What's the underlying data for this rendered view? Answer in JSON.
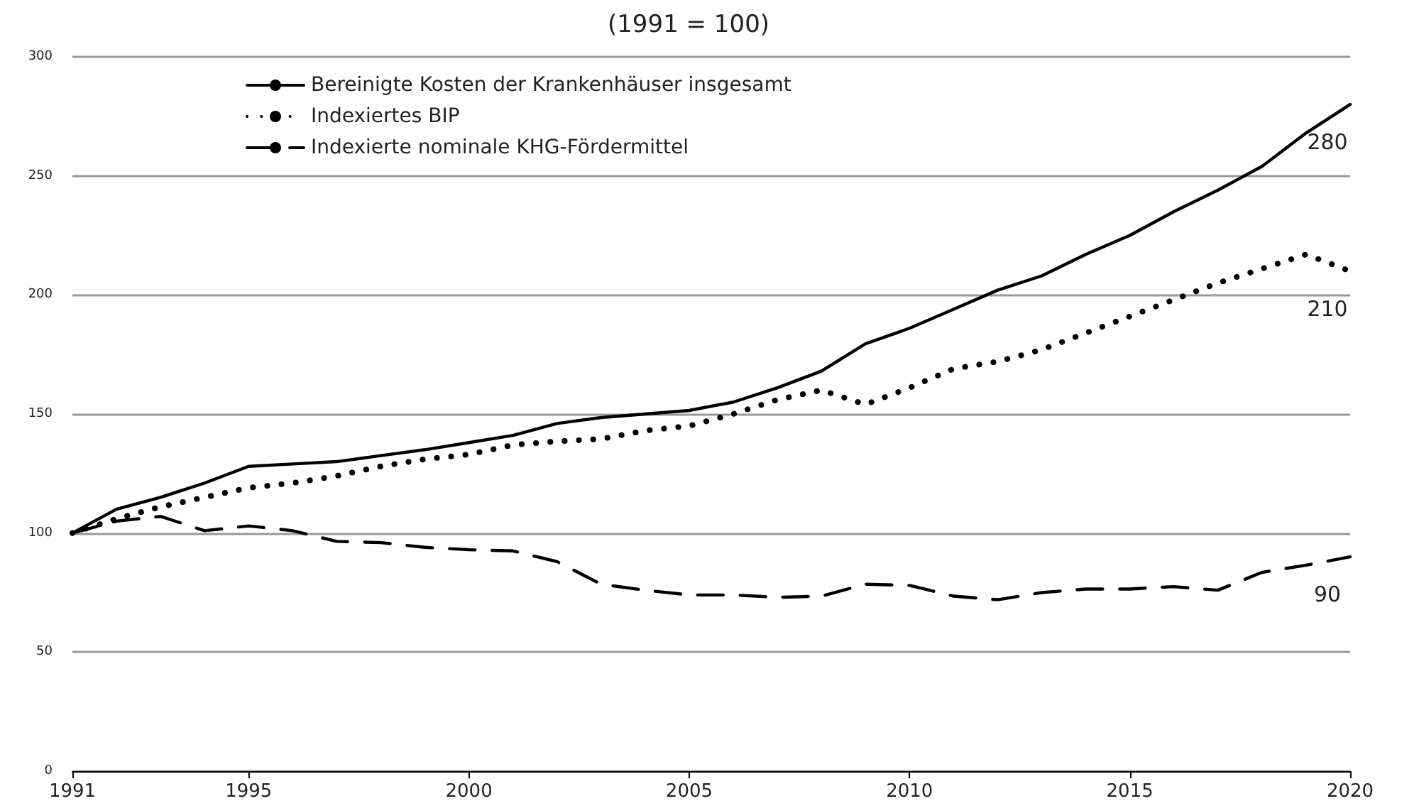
{
  "chart_data": {
    "type": "line",
    "title": "(1991 = 100)",
    "x": [
      1991,
      1992,
      1993,
      1994,
      1995,
      1996,
      1997,
      1998,
      1999,
      2000,
      2001,
      2002,
      2003,
      2004,
      2005,
      2006,
      2007,
      2008,
      2009,
      2010,
      2011,
      2012,
      2013,
      2014,
      2015,
      2016,
      2017,
      2018,
      2019,
      2020
    ],
    "series": [
      {
        "name": "Bereinigte Kosten der Krankenhäuser insgesamt",
        "color": "#000000",
        "line_style": "solid",
        "values": [
          100,
          110,
          115,
          121,
          128,
          129,
          130,
          132.5,
          135,
          138,
          141,
          146,
          148.5,
          150,
          151.5,
          155,
          161,
          168,
          179.5,
          186,
          194,
          202,
          208,
          217,
          225,
          235,
          244,
          254,
          268,
          280
        ],
        "value_labels": [
          null,
          null,
          null,
          null,
          null,
          null,
          null,
          null,
          null,
          null,
          null,
          null,
          null,
          null,
          null,
          null,
          null,
          null,
          null,
          null,
          null,
          null,
          null,
          null,
          null,
          null,
          null,
          null,
          null,
          "280"
        ]
      },
      {
        "name": "Indexiertes BIP",
        "color": "#000000",
        "line_style": "dotted",
        "values": [
          100,
          106,
          111,
          115,
          119,
          121,
          124,
          128,
          131,
          133,
          137,
          138.5,
          139.5,
          143,
          145,
          150,
          156,
          160,
          154,
          161,
          169,
          172,
          177,
          184,
          191,
          198,
          205,
          211,
          217,
          210
        ],
        "value_labels": [
          null,
          null,
          null,
          null,
          null,
          null,
          null,
          null,
          null,
          null,
          null,
          null,
          null,
          null,
          null,
          null,
          null,
          null,
          null,
          null,
          null,
          null,
          null,
          null,
          null,
          null,
          null,
          null,
          null,
          "210"
        ]
      },
      {
        "name": "Indexierte nominale KHG-Fördermittel",
        "color": "#000000",
        "line_style": "dashed",
        "values": [
          100,
          105,
          107,
          101,
          103,
          101,
          96.5,
          96,
          94,
          93,
          92.5,
          88,
          78.5,
          76,
          74,
          74,
          73,
          73.5,
          78.5,
          78,
          73.5,
          72,
          75,
          76.5,
          76.5,
          77.5,
          76,
          83.5,
          86.5,
          90
        ],
        "value_labels": [
          null,
          null,
          null,
          null,
          null,
          null,
          null,
          null,
          null,
          null,
          null,
          null,
          null,
          null,
          null,
          null,
          null,
          null,
          null,
          null,
          null,
          null,
          null,
          null,
          null,
          null,
          null,
          null,
          null,
          "90"
        ]
      }
    ],
    "xlim": [
      1991,
      2020
    ],
    "xticks": [
      1991,
      1995,
      2000,
      2005,
      2010,
      2015,
      2020
    ],
    "ylim": [
      0,
      300
    ],
    "yticks": [
      0,
      50,
      100,
      150,
      200,
      250,
      300
    ],
    "grid": "y",
    "legend": "top left",
    "marker": "none"
  }
}
